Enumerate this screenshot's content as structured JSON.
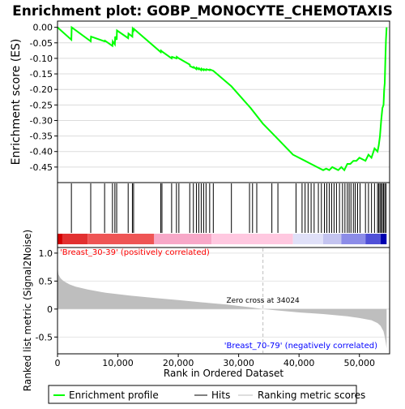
{
  "title": "Enrichment plot: GOBP_MONOCYTE_CHEMOTAXIS",
  "colors": {
    "es_line": "#00ff00",
    "hit": "#000000",
    "metric_fill": "#bebebe",
    "pos_label": "#ff0000",
    "neg_label": "#0000ff",
    "zero_line": "#bebebe"
  },
  "chart_data": [
    {
      "type": "line",
      "panel": "enrichment-score",
      "ylabel": "Enrichment score (ES)",
      "ylim": [
        -0.5,
        0.02
      ],
      "xlim": [
        0,
        55000
      ],
      "yticks": [
        0.0,
        -0.05,
        -0.1,
        -0.15,
        -0.2,
        -0.25,
        -0.3,
        -0.35,
        -0.4,
        -0.45
      ],
      "ytick_labels": [
        "0.00",
        "-0.05",
        "-0.10",
        "-0.15",
        "-0.20",
        "-0.25",
        "-0.30",
        "-0.35",
        "-0.40",
        "-0.45"
      ],
      "grid": true,
      "x": [
        0,
        2300,
        2350,
        5500,
        5550,
        7800,
        7850,
        9100,
        9150,
        9500,
        9550,
        9800,
        9850,
        11700,
        11750,
        12400,
        12450,
        12600,
        12650,
        17100,
        17150,
        17300,
        18900,
        18950,
        19700,
        19750,
        20100,
        21900,
        21950,
        22500,
        22550,
        23000,
        23050,
        23400,
        23450,
        23800,
        23850,
        24200,
        24250,
        24600,
        24650,
        25200,
        25250,
        25800,
        28800,
        32000,
        34000,
        36000,
        39000,
        41000,
        43000,
        44000,
        44500,
        45000,
        45500,
        46000,
        46500,
        47000,
        47500,
        48000,
        48500,
        49000,
        49500,
        50000,
        51000,
        51500,
        52000,
        52500,
        53000,
        53200,
        53400,
        53600,
        53800,
        54000,
        54100,
        54200,
        54300,
        54400,
        54500
      ],
      "y": [
        0.0,
        -0.04,
        0.0,
        -0.045,
        -0.03,
        -0.045,
        -0.043,
        -0.06,
        -0.045,
        -0.055,
        -0.03,
        -0.04,
        -0.01,
        -0.035,
        -0.02,
        -0.03,
        -0.005,
        -0.01,
        -0.005,
        -0.08,
        -0.075,
        -0.078,
        -0.1,
        -0.095,
        -0.1,
        -0.095,
        -0.1,
        -0.12,
        -0.125,
        -0.13,
        -0.128,
        -0.135,
        -0.13,
        -0.135,
        -0.132,
        -0.138,
        -0.133,
        -0.138,
        -0.135,
        -0.138,
        -0.135,
        -0.138,
        -0.136,
        -0.14,
        -0.19,
        -0.26,
        -0.31,
        -0.35,
        -0.41,
        -0.43,
        -0.45,
        -0.46,
        -0.455,
        -0.46,
        -0.45,
        -0.455,
        -0.46,
        -0.45,
        -0.46,
        -0.44,
        -0.44,
        -0.43,
        -0.43,
        -0.42,
        -0.43,
        -0.41,
        -0.42,
        -0.39,
        -0.4,
        -0.38,
        -0.35,
        -0.3,
        -0.26,
        -0.25,
        -0.2,
        -0.18,
        -0.1,
        -0.04,
        0.0
      ],
      "legend": [
        "Enrichment profile",
        "Hits",
        "Ranking metric scores"
      ]
    },
    {
      "type": "hits",
      "panel": "hits-rug",
      "x": [
        2300,
        5500,
        7800,
        9100,
        9500,
        9800,
        11700,
        12400,
        12600,
        17100,
        17300,
        18900,
        19700,
        20100,
        21900,
        22500,
        23000,
        23400,
        23800,
        24200,
        24600,
        25200,
        25800,
        28800,
        31800,
        32300,
        33000,
        35500,
        36500,
        39500,
        40500,
        41000,
        41500,
        42000,
        42500,
        43200,
        43700,
        44200,
        44600,
        45000,
        45400,
        45800,
        46200,
        46700,
        47200,
        47600,
        48000,
        48300,
        48600,
        49000,
        49300,
        49700,
        50100,
        51000,
        51500,
        52000,
        52500,
        53000,
        53200,
        53400,
        53600,
        53800,
        54000,
        54200,
        54400
      ]
    },
    {
      "type": "area",
      "panel": "ranked-list-metric",
      "ylabel": "Ranked list metric (Signal2Noise)",
      "xlabel": "Rank in Ordered Dataset",
      "xlim": [
        0,
        55000
      ],
      "ylim": [
        -0.8,
        1.1
      ],
      "xticks": [
        0,
        10000,
        20000,
        30000,
        40000,
        50000
      ],
      "xtick_labels": [
        "0",
        "10,000",
        "20,000",
        "30,000",
        "40,000",
        "50,000"
      ],
      "yticks": [
        1.0,
        0.5,
        0.0,
        -0.5
      ],
      "ytick_labels": [
        "1.0",
        "0.5",
        "0",
        "-0.5"
      ],
      "x": [
        0,
        150,
        500,
        1000,
        2000,
        3000,
        5000,
        8000,
        12000,
        16000,
        20000,
        24000,
        28000,
        32000,
        34024,
        36000,
        40000,
        44000,
        48000,
        50000,
        52000,
        53000,
        53500,
        54000,
        54200,
        54400,
        54500
      ],
      "y": [
        0.75,
        0.62,
        0.55,
        0.5,
        0.44,
        0.4,
        0.35,
        0.29,
        0.24,
        0.2,
        0.16,
        0.12,
        0.08,
        0.03,
        0.0,
        -0.02,
        -0.06,
        -0.09,
        -0.13,
        -0.16,
        -0.2,
        -0.25,
        -0.3,
        -0.4,
        -0.5,
        -0.62,
        -0.7
      ],
      "zero_cross_label": "Zero cross at 34024",
      "zero_cross": 34024,
      "pos_label": "'Breast_30-39' (positively correlated)",
      "neg_label": "'Breast_70-79' (negatively correlated)"
    }
  ]
}
